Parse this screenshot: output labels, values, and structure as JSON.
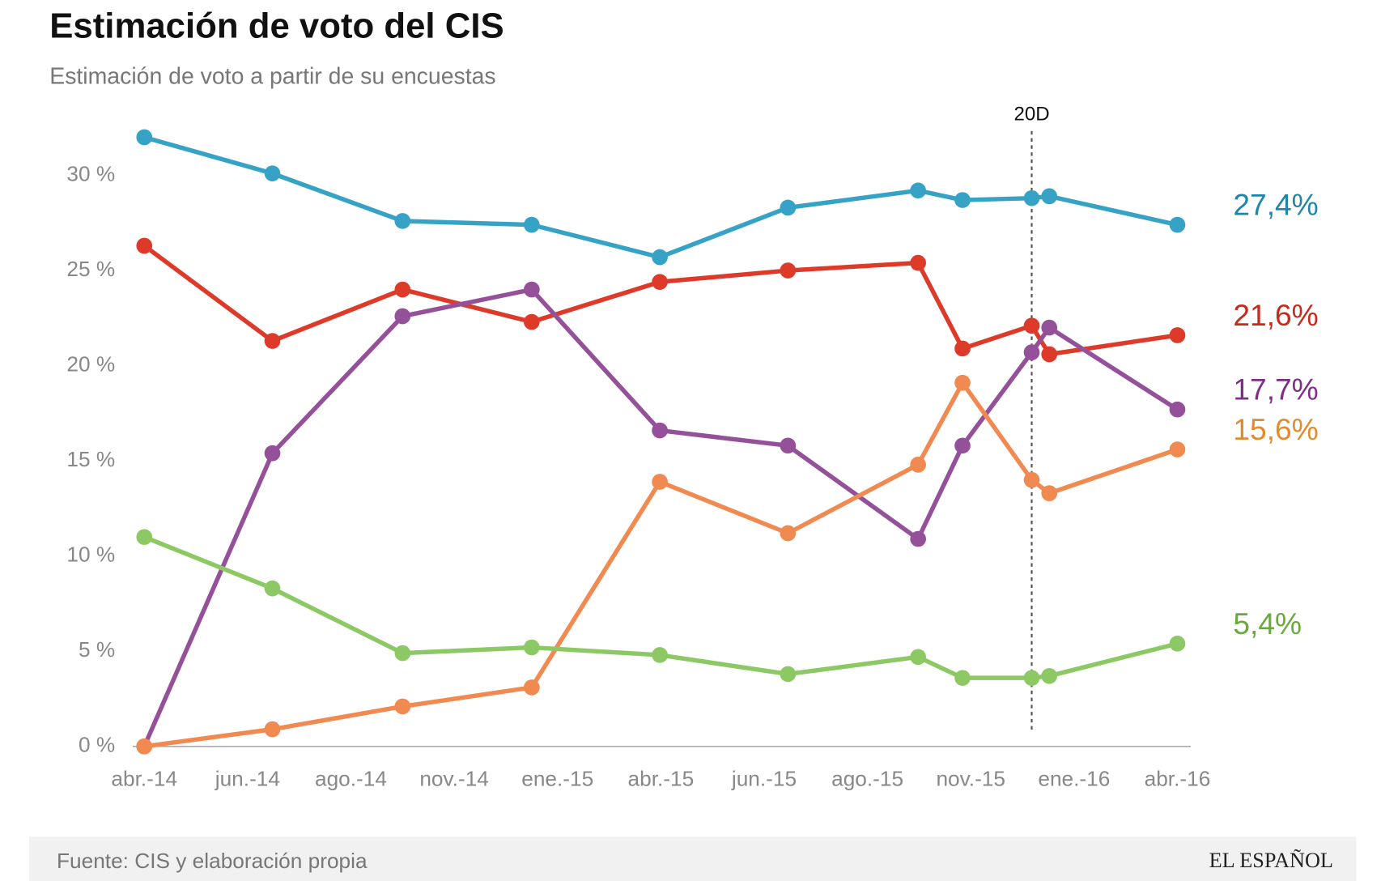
{
  "chart_data": {
    "type": "line",
    "title": "Estimación de voto del CIS",
    "subtitle": "Estimación de voto a partir de su encuestas",
    "source": "Fuente: CIS y elaboración propia",
    "brand": "EL ESPAÑOL",
    "x": [
      0,
      1.24,
      2.5,
      3.75,
      4.99,
      6.23,
      7.49,
      7.92,
      8.59,
      8.76,
      10
    ],
    "xlim": [
      0,
      10
    ],
    "xticks": [
      {
        "value": 0,
        "label": "abr.-14"
      },
      {
        "value": 1,
        "label": "jun.-14"
      },
      {
        "value": 2,
        "label": "ago.-14"
      },
      {
        "value": 3,
        "label": "nov.-14"
      },
      {
        "value": 4,
        "label": "ene.-15"
      },
      {
        "value": 5,
        "label": "abr.-15"
      },
      {
        "value": 6,
        "label": "jun.-15"
      },
      {
        "value": 7,
        "label": "ago.-15"
      },
      {
        "value": 8,
        "label": "nov.-15"
      },
      {
        "value": 9,
        "label": "ene.-16"
      },
      {
        "value": 10,
        "label": "abr.-16"
      }
    ],
    "ylim": [
      0,
      32
    ],
    "yticks": [
      {
        "value": 0,
        "label": "0 %"
      },
      {
        "value": 5,
        "label": "5 %"
      },
      {
        "value": 10,
        "label": "10 %"
      },
      {
        "value": 15,
        "label": "15 %"
      },
      {
        "value": 20,
        "label": "20 %"
      },
      {
        "value": 25,
        "label": "25 %"
      },
      {
        "value": 30,
        "label": "30 %"
      }
    ],
    "annotation": {
      "text": "20D",
      "x": 8.59
    },
    "series": [
      {
        "color": "#36a3c6",
        "label_color": "#1f86a8",
        "end_label": "27,4%",
        "values": [
          32.0,
          30.1,
          27.6,
          27.4,
          25.7,
          28.3,
          29.2,
          28.7,
          28.8,
          28.9,
          27.4
        ]
      },
      {
        "color": "#dd3a2a",
        "label_color": "#c9281b",
        "end_label": "21,6%",
        "values": [
          26.3,
          21.3,
          24.0,
          22.3,
          24.4,
          25.0,
          25.4,
          20.9,
          22.1,
          20.6,
          21.6
        ]
      },
      {
        "color": "#95509a",
        "label_color": "#7e2e86",
        "end_label": "17,7%",
        "values": [
          0,
          15.4,
          22.6,
          24.0,
          16.6,
          15.8,
          10.9,
          15.8,
          20.7,
          22.0,
          17.7
        ]
      },
      {
        "color": "#f08a51",
        "label_color": "#e38a2a",
        "end_label": "15,6%",
        "values": [
          0,
          0.9,
          2.1,
          3.1,
          13.9,
          11.2,
          14.8,
          19.1,
          14.0,
          13.3,
          15.6
        ]
      },
      {
        "color": "#8cc965",
        "label_color": "#6aa93e",
        "end_label": "5,4%",
        "values": [
          11.0,
          8.3,
          4.9,
          5.2,
          4.8,
          3.8,
          4.7,
          3.6,
          3.6,
          3.7,
          5.4
        ]
      }
    ]
  }
}
